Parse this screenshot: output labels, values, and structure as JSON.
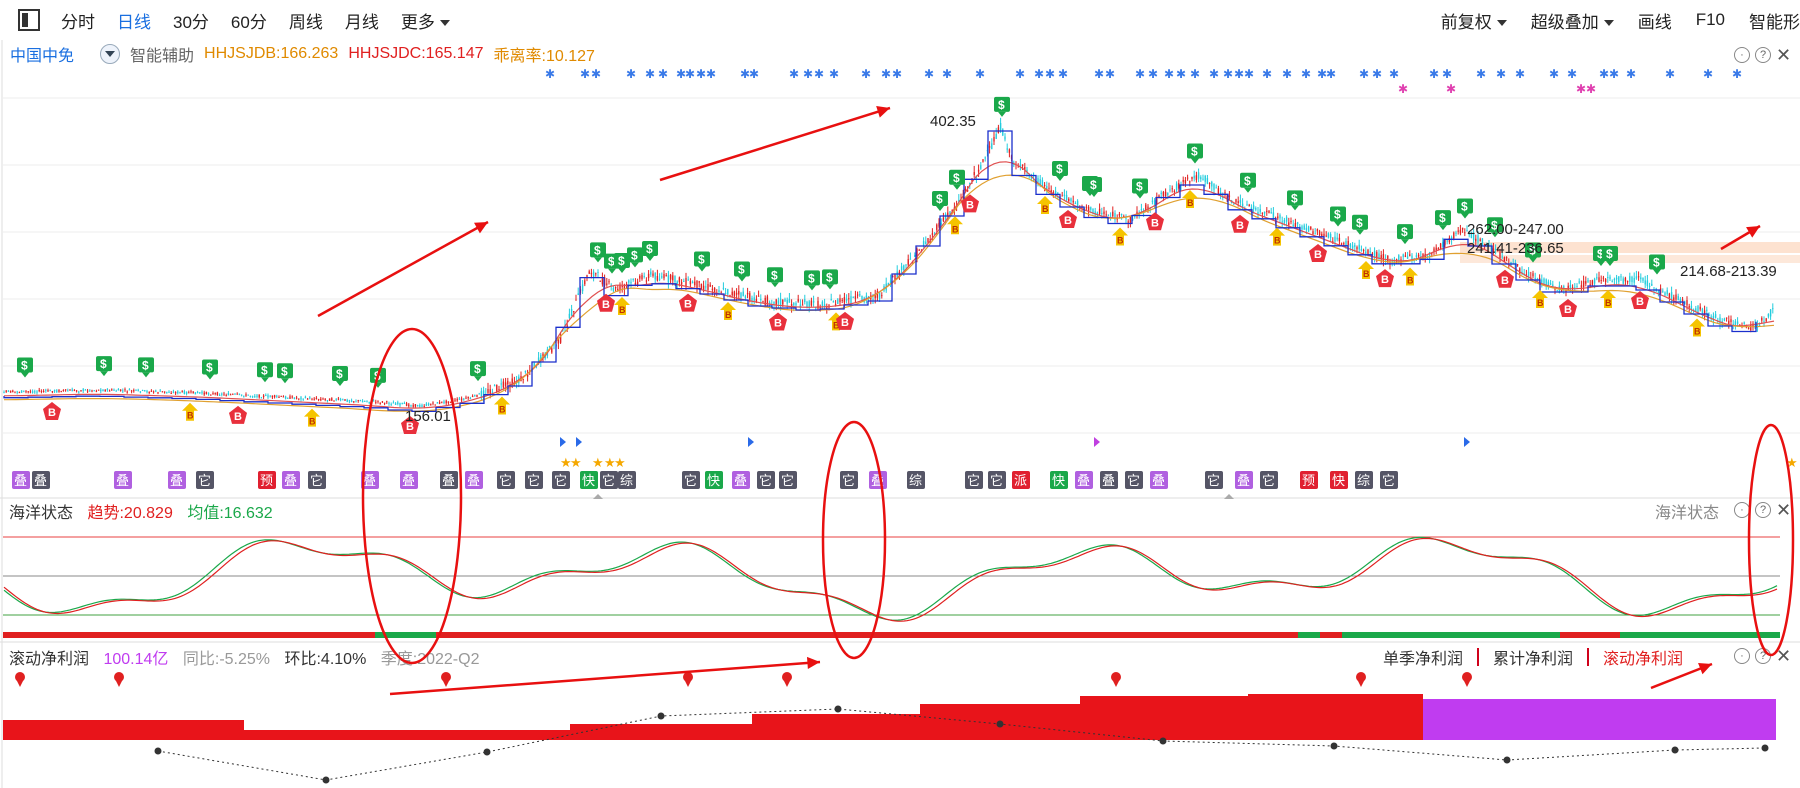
{
  "toolbar": {
    "tabs": [
      "分时",
      "日线",
      "30分",
      "60分",
      "周线",
      "月线",
      "更多"
    ],
    "active_tab": 1,
    "right_items": [
      "前复权",
      "超级叠加",
      "画线",
      "F10",
      "智能形"
    ]
  },
  "info": {
    "stock_name": "中国中免",
    "assist_label": "智能辅助",
    "hhjsjdb": "HHJSJDB:166.263",
    "hhjsjdc": "HHJSJDC:165.147",
    "deviation": "乖离率:10.127"
  },
  "price_annotations": {
    "high": "402.35",
    "low": "156.01",
    "zone1": "262.00-247.00",
    "zone2": "241.41-236.65",
    "zone3": "214.68-213.39"
  },
  "state_panel": {
    "name": "海洋状态",
    "trend": "趋势:20.829",
    "avg": "均值:16.632",
    "right_label": "海洋状态"
  },
  "profit_panel": {
    "name": "滚动净利润",
    "value": "100.14亿",
    "yoy": "同比:-5.25%",
    "qoq": "环比:4.10%",
    "quarter": "季度:2022-Q2",
    "tabs": [
      "单季净利润",
      "累计净利润",
      "滚动净利润"
    ],
    "active_tab": 2
  },
  "signal_tags": [
    "叠",
    "叠",
    "叠",
    "叠",
    "它",
    "预",
    "叠",
    "它",
    "叠",
    "叠",
    "叠",
    "叠",
    "它",
    "它",
    "它",
    "快",
    "它",
    "综",
    "它",
    "快",
    "叠",
    "它",
    "它",
    "它",
    "叠",
    "综",
    "它",
    "它",
    "派",
    "快",
    "叠",
    "叠",
    "它",
    "叠",
    "它",
    "叠",
    "它",
    "预",
    "快",
    "综",
    "它"
  ],
  "colors": {
    "accent": "#1a6fe0",
    "up": "#e02020",
    "down_line": "#22ccdd",
    "ma_line": "#1a2fcc",
    "sell_signal": "#1aa84a",
    "buy_signal": "#e8303c",
    "profit_bar": "#e8141a",
    "profit_forecast": "#c03cf0",
    "state_up": "#e02020",
    "state_down": "#1aa84a"
  }
}
